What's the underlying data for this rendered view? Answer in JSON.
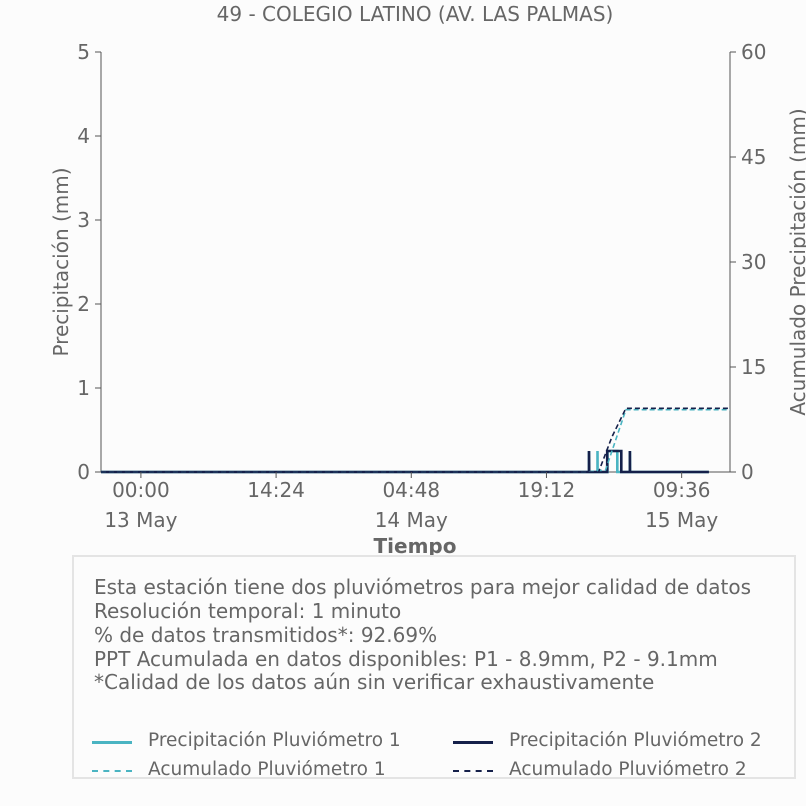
{
  "title": "49 - COLEGIO LATINO (AV. LAS PALMAS)",
  "colors": {
    "p1": "#4ab4c2",
    "p2": "#15204a",
    "text": "#666666",
    "axis": "#555555",
    "box_border": "#e4e4e4"
  },
  "info": {
    "lines": [
      "Esta estación tiene dos pluviómetros para mejor calidad de datos",
      "Resolución temporal: 1 minuto",
      "% de datos transmitidos*: 92.69%",
      "PPT Acumulada en datos disponibles: P1 - 8.9mm, P2 - 9.1mm",
      "*Calidad de los datos aún sin verificar exhaustivamente"
    ]
  },
  "legend": {
    "items": [
      {
        "label": "Precipitación Pluviómetro 1",
        "series": "p1",
        "style": "solid"
      },
      {
        "label": "Precipitación Pluviómetro 2",
        "series": "p2",
        "style": "solid"
      },
      {
        "label": "Acumulado Pluviómetro 1",
        "series": "p1",
        "style": "dashed"
      },
      {
        "label": "Acumulado Pluviómetro 2",
        "series": "p2",
        "style": "dashed"
      }
    ]
  },
  "chart_data": {
    "type": "line",
    "title": "49 - COLEGIO LATINO (AV. LAS PALMAS)",
    "xlabel": "Tiempo",
    "ylabel": "Precipitación (mm)",
    "y2label": "Acumulado Precipitación (mm)",
    "xlim": [
      "2024-05-12 19:45",
      "2024-05-15 14:45"
    ],
    "ylim": [
      0,
      5
    ],
    "y2lim": [
      0,
      60
    ],
    "x_ticks": [
      {
        "x": "2024-05-13 00:00",
        "label": "00:00",
        "sublabel": "13 May"
      },
      {
        "x": "2024-05-13 14:24",
        "label": "14:24",
        "sublabel": ""
      },
      {
        "x": "2024-05-14 04:48",
        "label": "04:48",
        "sublabel": "14 May"
      },
      {
        "x": "2024-05-14 19:12",
        "label": "19:12",
        "sublabel": ""
      },
      {
        "x": "2024-05-15 09:36",
        "label": "09:36",
        "sublabel": "15 May"
      }
    ],
    "y_ticks": [
      "0",
      "1",
      "2",
      "3",
      "4",
      "5"
    ],
    "y2_ticks": [
      "0",
      "15",
      "30",
      "45",
      "60"
    ],
    "grid": false,
    "series": [
      {
        "name": "Precipitación Pluviómetro 1",
        "key": "p1",
        "axis": "left",
        "style": "solid",
        "x": [
          "2024-05-12 19:45",
          "2024-05-14 23:44",
          "2024-05-14 23:44",
          "2024-05-14 23:45",
          "2024-05-15 00:38",
          "2024-05-15 00:38",
          "2024-05-15 00:39",
          "2024-05-15 01:42",
          "2024-05-15 01:42",
          "2024-05-15 02:45",
          "2024-05-15 02:45",
          "2024-05-15 04:05",
          "2024-05-15 04:05",
          "2024-05-15 04:06",
          "2024-05-15 12:30"
        ],
        "y": [
          0,
          0,
          0.25,
          0,
          0,
          0.25,
          0,
          0,
          0.25,
          0.25,
          0,
          0,
          0.25,
          0,
          0
        ]
      },
      {
        "name": "Precipitación Pluviómetro 2",
        "key": "p2",
        "axis": "left",
        "style": "solid",
        "x": [
          "2024-05-12 19:45",
          "2024-05-14 23:44",
          "2024-05-14 23:44",
          "2024-05-14 23:45",
          "2024-05-15 01:40",
          "2024-05-15 01:40",
          "2024-05-15 03:10",
          "2024-05-15 03:10",
          "2024-05-15 04:05",
          "2024-05-15 04:05",
          "2024-05-15 04:06",
          "2024-05-15 12:30"
        ],
        "y": [
          0,
          0,
          0.25,
          0,
          0,
          0.25,
          0.25,
          0,
          0,
          0.25,
          0,
          0
        ]
      },
      {
        "name": "Acumulado Pluviómetro 1",
        "key": "p1",
        "axis": "right",
        "style": "dashed",
        "x": [
          "2024-05-12 19:45",
          "2024-05-14 23:30",
          "2024-05-15 01:30",
          "2024-05-15 03:40",
          "2024-05-15 14:45"
        ],
        "y": [
          0,
          0,
          0.3,
          8.9,
          8.9
        ]
      },
      {
        "name": "Acumulado Pluviómetro 2",
        "key": "p2",
        "axis": "right",
        "style": "dashed",
        "x": [
          "2024-05-12 19:45",
          "2024-05-15 00:45",
          "2024-05-15 02:10",
          "2024-05-15 03:40",
          "2024-05-15 14:45"
        ],
        "y": [
          0,
          0,
          5.0,
          9.1,
          9.1
        ]
      }
    ]
  }
}
